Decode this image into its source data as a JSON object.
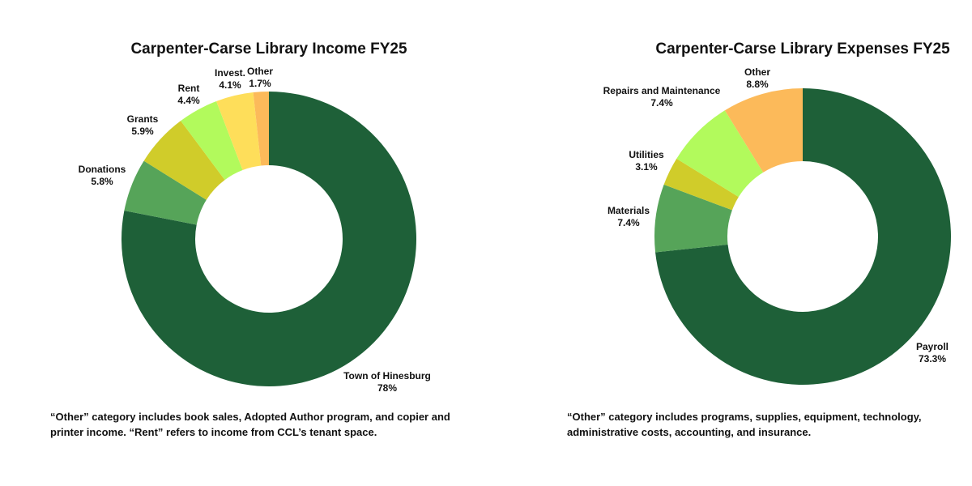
{
  "colors": {
    "dark_green": "#1e6038",
    "mid_green": "#56a459",
    "olive_yellow": "#d0cc2a",
    "lime": "#b2fa5c",
    "light_yellow": "#fede5a",
    "orange": "#fcba5a"
  },
  "chart_data": [
    {
      "type": "pie",
      "style": "donut",
      "title": "Carpenter-Carse Library Income FY25",
      "labels": [
        "Town of Hinesburg",
        "Donations",
        "Grants",
        "Rent",
        "Invest.",
        "Other"
      ],
      "values": [
        78,
        5.8,
        5.9,
        4.4,
        4.1,
        1.7
      ],
      "value_labels": [
        "78%",
        "5.8%",
        "5.9%",
        "4.4%",
        "4.1%",
        "1.7%"
      ],
      "slice_colors": [
        "#1e6038",
        "#56a459",
        "#d0cc2a",
        "#b2fa5c",
        "#fede5a",
        "#fcba5a"
      ],
      "note": "“Other” category includes book sales, Adopted Author program, and copier and printer income.  “Rent” refers to income from CCL’s tenant space."
    },
    {
      "type": "pie",
      "style": "donut",
      "title": "Carpenter-Carse Library Expenses FY25",
      "labels": [
        "Payroll",
        "Materials",
        "Utilities",
        "Repairs and Maintenance",
        "Other"
      ],
      "values": [
        73.3,
        7.4,
        3.1,
        7.4,
        8.8
      ],
      "value_labels": [
        "73.3%",
        "7.4%",
        "3.1%",
        "7.4%",
        "8.8%"
      ],
      "slice_colors": [
        "#1e6038",
        "#56a459",
        "#d0cc2a",
        "#b2fa5c",
        "#fcba5a"
      ],
      "note": "“Other” category includes programs, supplies, equipment, technology, administrative costs, accounting, and insurance."
    }
  ]
}
